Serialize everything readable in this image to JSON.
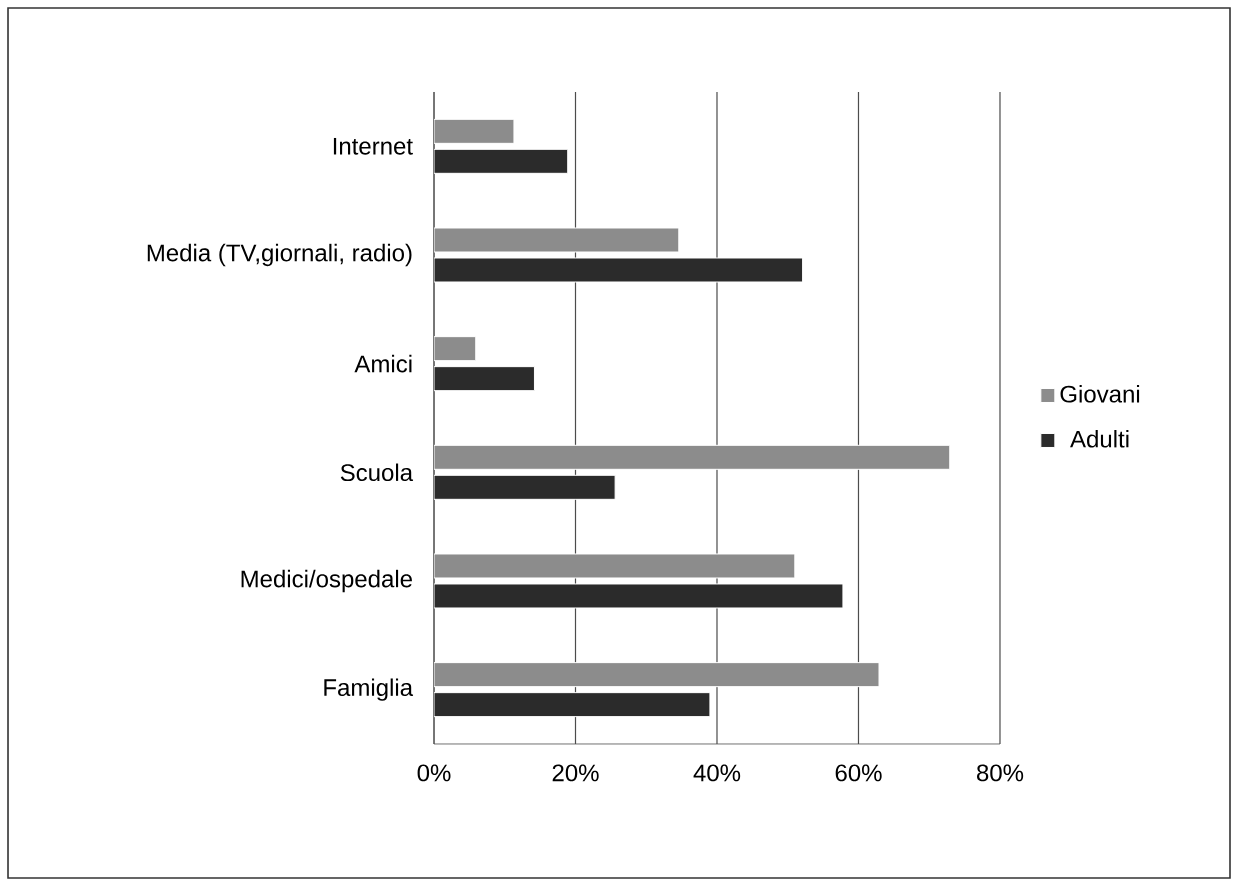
{
  "chart_data": {
    "type": "bar",
    "orientation": "horizontal",
    "categories": [
      "Internet",
      "Media (TV,giornali, radio)",
      "Amici",
      "Scuola",
      "Medici/ospedale",
      "Famiglia"
    ],
    "series": [
      {
        "name": "Giovani",
        "color": "#8c8c8c",
        "values": [
          11.3,
          34.6,
          5.9,
          72.9,
          51.0,
          62.9
        ]
      },
      {
        "name": "Adulti",
        "color": "#2b2b2b",
        "values": [
          18.9,
          52.1,
          14.2,
          25.6,
          57.8,
          39.0
        ]
      }
    ],
    "xlim": [
      0,
      80
    ],
    "xticks": [
      {
        "value": 0,
        "label": "0%"
      },
      {
        "value": 20,
        "label": "20%"
      },
      {
        "value": 40,
        "label": "40%"
      },
      {
        "value": 60,
        "label": "60%"
      },
      {
        "value": 80,
        "label": "80%"
      }
    ],
    "grid": "x",
    "legend": "right"
  }
}
